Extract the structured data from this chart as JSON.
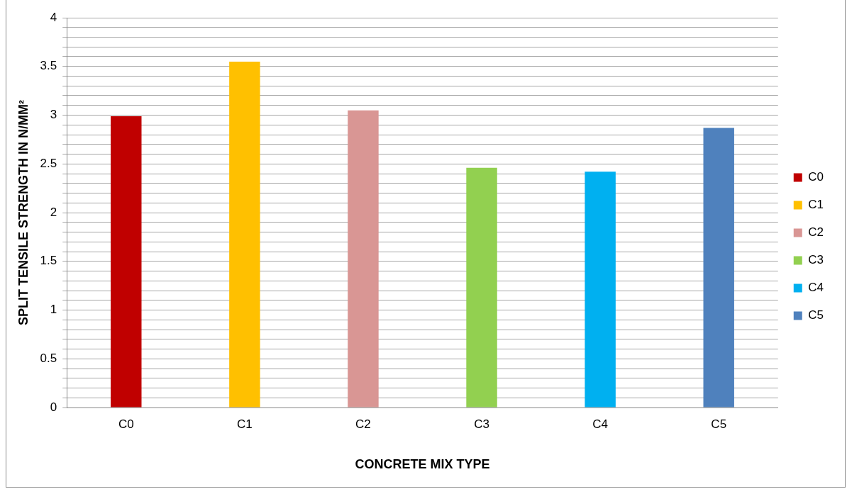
{
  "chart_data": {
    "type": "bar",
    "xlabel": "CONCRETE MIX TYPE",
    "ylabel": "SPLIT TENSILE STRENGTH IN N/MM²",
    "categories": [
      "C0",
      "C1",
      "C2",
      "C3",
      "C4",
      "C5"
    ],
    "series": [
      {
        "name": "C0",
        "color": "#c00000",
        "values": [
          2.99,
          null,
          null,
          null,
          null,
          null
        ]
      },
      {
        "name": "C1",
        "color": "#ffc000",
        "values": [
          null,
          3.55,
          null,
          null,
          null,
          null
        ]
      },
      {
        "name": "C2",
        "color": "#d99694",
        "values": [
          null,
          null,
          3.05,
          null,
          null,
          null
        ]
      },
      {
        "name": "C3",
        "color": "#92d050",
        "values": [
          null,
          null,
          null,
          2.46,
          null,
          null
        ]
      },
      {
        "name": "C4",
        "color": "#00b0f0",
        "values": [
          null,
          null,
          null,
          null,
          2.42,
          null
        ]
      },
      {
        "name": "C5",
        "color": "#4f81bd",
        "values": [
          null,
          null,
          null,
          null,
          null,
          2.87
        ]
      }
    ],
    "ylim": [
      0,
      4
    ],
    "yticks": [
      0,
      {
        "value": 0.1,
        "label": null
      },
      {
        "value": 0.2,
        "label": null
      },
      {
        "value": 0.3,
        "label": null
      },
      {
        "value": 0.4,
        "label": null
      },
      0.5,
      {
        "value": 0.6,
        "label": null
      },
      {
        "value": 0.7,
        "label": null
      },
      {
        "value": 0.8,
        "label": null
      },
      {
        "value": 0.9,
        "label": null
      },
      1,
      {
        "value": 1.1,
        "label": null
      },
      {
        "value": 1.2,
        "label": null
      },
      {
        "value": 1.3,
        "label": null
      },
      {
        "value": 1.4,
        "label": null
      },
      1.5,
      {
        "value": 1.6,
        "label": null
      },
      {
        "value": 1.7,
        "label": null
      },
      {
        "value": 1.8,
        "label": null
      },
      {
        "value": 1.9,
        "label": null
      },
      2,
      {
        "value": 2.1,
        "label": null
      },
      {
        "value": 2.2,
        "label": null
      },
      {
        "value": 2.3,
        "label": null
      },
      {
        "value": 2.4,
        "label": null
      },
      2.5,
      {
        "value": 2.6,
        "label": null
      },
      {
        "value": 2.7,
        "label": null
      },
      {
        "value": 2.8,
        "label": null
      },
      {
        "value": 2.9,
        "label": null
      },
      3,
      {
        "value": 3.1,
        "label": null
      },
      {
        "value": 3.2,
        "label": null
      },
      {
        "value": 3.3,
        "label": null
      },
      {
        "value": 3.4,
        "label": null
      },
      3.5,
      {
        "value": 3.6,
        "label": null
      },
      {
        "value": 3.7,
        "label": null
      },
      {
        "value": 3.8,
        "label": null
      },
      {
        "value": 3.9,
        "label": null
      },
      4
    ],
    "grid": "y",
    "legend": "right"
  }
}
